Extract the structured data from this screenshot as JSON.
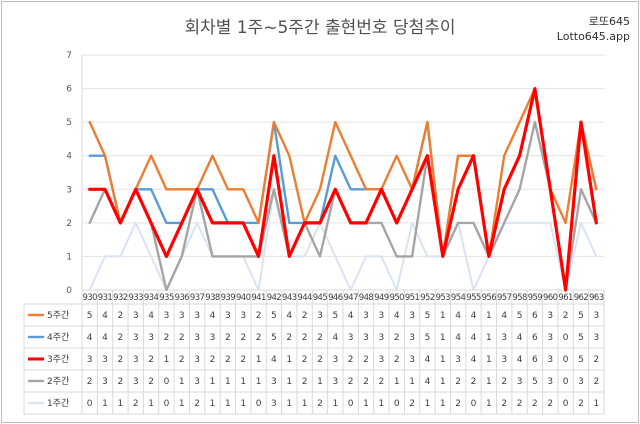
{
  "header": {
    "title": "회차별 1주~5주간 출현번호 당첨추이"
  },
  "brand": {
    "line1": "로또645",
    "line2": "Lotto645.app"
  },
  "chart_data": {
    "type": "line",
    "title": "회차별 1주~5주간 출현번호 당첨추이",
    "xlabel": "",
    "ylabel": "",
    "ylim": [
      0,
      7
    ],
    "yticks": [
      0,
      1,
      2,
      3,
      4,
      5,
      6,
      7
    ],
    "grid": true,
    "legend": "data-table-left",
    "x": [
      "930",
      "931",
      "932",
      "933",
      "934",
      "935",
      "936",
      "937",
      "938",
      "939",
      "940",
      "941",
      "942",
      "943",
      "944",
      "945",
      "946",
      "947",
      "948",
      "949",
      "950",
      "951",
      "952",
      "953",
      "954",
      "955",
      "956",
      "957",
      "958",
      "959",
      "960",
      "961",
      "962",
      "963"
    ],
    "series": [
      {
        "name": "5주간",
        "color": "#ed7d31",
        "values": [
          5,
          4,
          2,
          3,
          4,
          3,
          3,
          3,
          4,
          3,
          3,
          2,
          5,
          4,
          2,
          3,
          5,
          4,
          3,
          3,
          4,
          3,
          5,
          1,
          4,
          4,
          1,
          4,
          5,
          6,
          3,
          2,
          5,
          3
        ]
      },
      {
        "name": "4주간",
        "color": "#5b9bd5",
        "values": [
          4,
          4,
          2,
          3,
          3,
          2,
          2,
          3,
          3,
          2,
          2,
          2,
          5,
          2,
          2,
          2,
          4,
          3,
          3,
          3,
          2,
          3,
          5,
          1,
          4,
          4,
          1,
          3,
          4,
          6,
          3,
          0,
          5,
          3
        ]
      },
      {
        "name": "3주간",
        "color": "#ff0000",
        "values": [
          3,
          3,
          2,
          3,
          2,
          1,
          2,
          3,
          2,
          2,
          2,
          1,
          4,
          1,
          2,
          2,
          3,
          2,
          2,
          3,
          2,
          3,
          4,
          1,
          3,
          4,
          1,
          3,
          4,
          6,
          3,
          0,
          5,
          2
        ]
      },
      {
        "name": "2주간",
        "color": "#a5a5a5",
        "values": [
          2,
          3,
          2,
          3,
          2,
          0,
          1,
          3,
          1,
          1,
          1,
          1,
          3,
          1,
          2,
          1,
          3,
          2,
          2,
          2,
          1,
          1,
          4,
          1,
          2,
          2,
          1,
          2,
          3,
          5,
          3,
          0,
          3,
          2
        ]
      },
      {
        "name": "1주간",
        "color": "#dae3f3",
        "values": [
          0,
          1,
          1,
          2,
          1,
          0,
          1,
          2,
          1,
          1,
          1,
          0,
          3,
          1,
          1,
          2,
          1,
          0,
          1,
          1,
          0,
          2,
          1,
          1,
          2,
          0,
          1,
          2,
          2,
          2,
          2,
          0,
          2,
          1
        ]
      }
    ]
  }
}
